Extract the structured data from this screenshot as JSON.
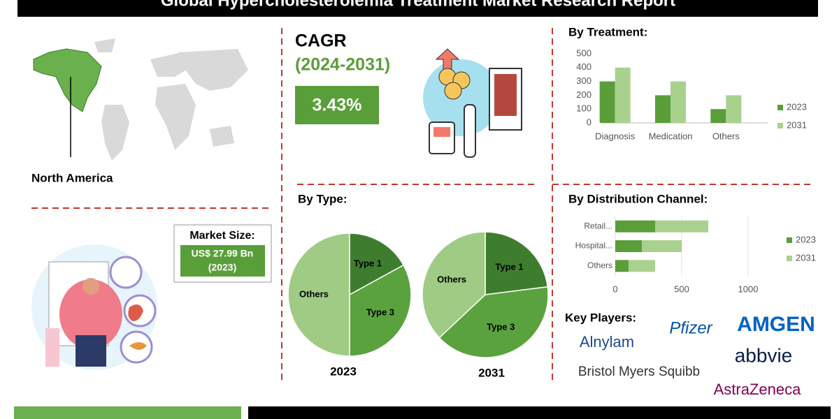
{
  "header": {
    "title": "Global Hypercholesterolemia Treatment Market Research Report"
  },
  "region": {
    "label": "North America"
  },
  "cagr": {
    "label": "CAGR",
    "period": "(2024-2031)",
    "value": "3.43%"
  },
  "market_size": {
    "label": "Market Size:",
    "value": "US$ 27.99 Bn",
    "year": "(2023)"
  },
  "type_section": {
    "title": "By Type:"
  },
  "key_players": {
    "title": "Key Players:",
    "companies": [
      "Pfizer",
      "AMGEN",
      "Alnylam",
      "abbvie",
      "Bristol Myers Squibb",
      "AstraZeneca"
    ]
  },
  "chart_data": [
    {
      "type": "bar",
      "title": "By Treatment:",
      "categories": [
        "Diagnosis",
        "Medication",
        "Others"
      ],
      "series": [
        {
          "name": "2023",
          "color": "#5a9e3a",
          "values": [
            300,
            200,
            100
          ]
        },
        {
          "name": "2031",
          "color": "#a9d18e",
          "values": [
            400,
            300,
            200
          ]
        }
      ],
      "ylim": [
        0,
        500
      ],
      "yticks": [
        0,
        100,
        200,
        300,
        400,
        500
      ],
      "legend": "right"
    },
    {
      "type": "stacked_bar_h",
      "title": "By Distribution Channel:",
      "categories": [
        "Retail...",
        "Hospital...",
        "Others"
      ],
      "series": [
        {
          "name": "2023",
          "color": "#5a9e3a",
          "values": [
            300,
            200,
            100
          ]
        },
        {
          "name": "2031",
          "color": "#a9d18e",
          "values": [
            400,
            300,
            200
          ]
        }
      ],
      "xlim": [
        0,
        1000
      ],
      "xticks": [
        0,
        500,
        1000
      ],
      "grid": true,
      "legend": "right"
    },
    {
      "type": "pie",
      "title": "2023",
      "categories": [
        "Type 1",
        "Type 3",
        "Others"
      ],
      "values": [
        17,
        33,
        50
      ],
      "colors": [
        "#3e7d2e",
        "#5aa23e",
        "#9fcb84"
      ]
    },
    {
      "type": "pie",
      "title": "2031",
      "categories": [
        "Type 1",
        "Type 3",
        "Others"
      ],
      "values": [
        23,
        40,
        37
      ],
      "colors": [
        "#3e7d2e",
        "#5aa23e",
        "#9fcb84"
      ]
    }
  ]
}
